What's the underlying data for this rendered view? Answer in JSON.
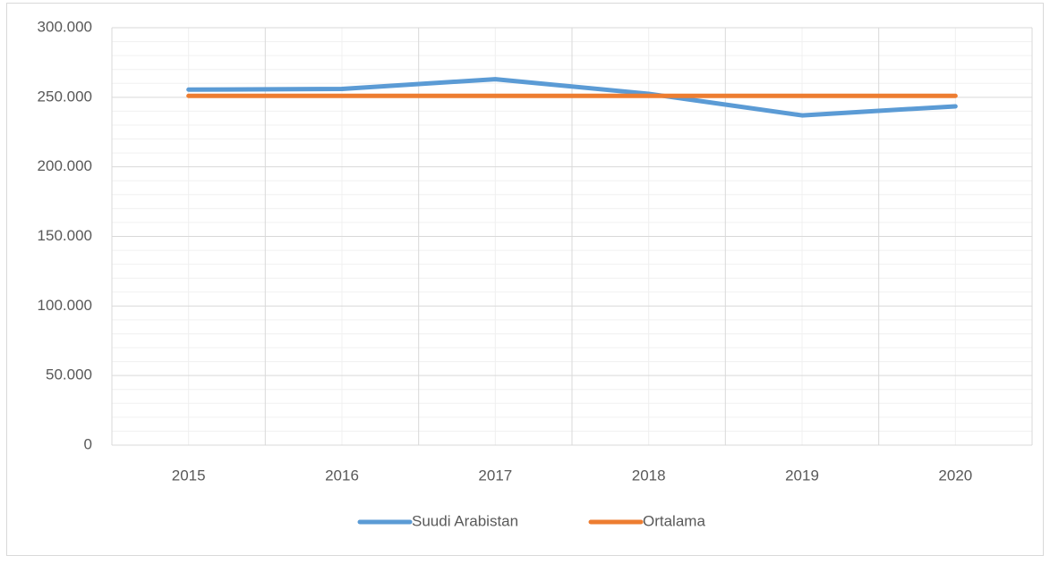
{
  "chart_data": {
    "type": "line",
    "categories": [
      "2015",
      "2016",
      "2017",
      "2018",
      "2019",
      "2020"
    ],
    "series": [
      {
        "name": "Suudi Arabistan",
        "color": "#5b9bd5",
        "values": [
          255500,
          256000,
          263000,
          252500,
          237000,
          243500
        ]
      },
      {
        "name": "Ortalama",
        "color": "#ed7d31",
        "values": [
          251000,
          251000,
          251000,
          251000,
          251000,
          251000
        ]
      }
    ],
    "ylim": [
      0,
      300000
    ],
    "yticks": [
      0,
      {
        "value": 50000,
        "label": "50.000"
      },
      {
        "value": 100000,
        "label": "100.000"
      },
      {
        "value": 150000,
        "label": "150.000"
      },
      {
        "value": 200000,
        "label": "200.000"
      },
      {
        "value": 250000,
        "label": "250.000"
      },
      {
        "value": 300000,
        "label": "300.000"
      }
    ],
    "grid": true,
    "legend": "bottom"
  }
}
